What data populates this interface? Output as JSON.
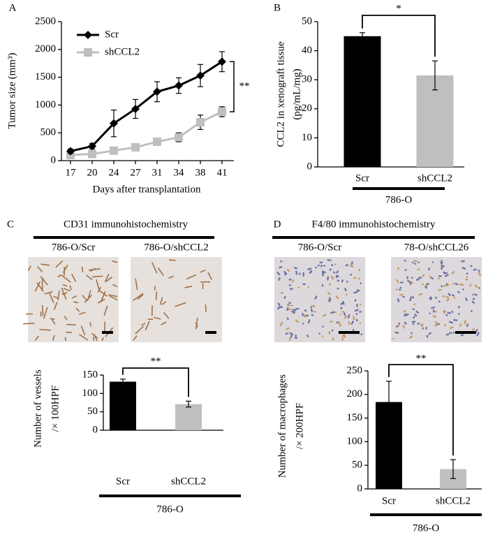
{
  "chart_data": [
    {
      "type": "line",
      "panel": "A",
      "xlabel": "Days after transplantation",
      "ylabel": "Tumor size (mm³)",
      "categories": [
        "17",
        "20",
        "24",
        "27",
        "31",
        "34",
        "38",
        "41"
      ],
      "series": [
        {
          "name": "Scr",
          "color": "#000000",
          "marker": "diamond",
          "values": [
            170,
            260,
            670,
            930,
            1240,
            1350,
            1530,
            1780
          ],
          "errors": [
            40,
            50,
            240,
            170,
            180,
            140,
            200,
            180
          ]
        },
        {
          "name": "shCCL2",
          "color": "#bfbfbf",
          "marker": "square",
          "values": [
            100,
            120,
            180,
            240,
            340,
            420,
            690,
            880
          ],
          "errors": [
            20,
            20,
            30,
            30,
            40,
            80,
            130,
            90
          ]
        }
      ],
      "ylim": [
        0,
        2500
      ],
      "yticks": [
        0,
        500,
        1000,
        1500,
        2000,
        2500
      ],
      "significance": "**"
    },
    {
      "type": "bar",
      "panel": "B",
      "ylabel": [
        "CCL2 in xenograft tissue",
        "(pg/mL/mg)"
      ],
      "categories": [
        "Scr",
        "shCCL2"
      ],
      "values": [
        45,
        31.5
      ],
      "errors": [
        1.2,
        5
      ],
      "colors": [
        "#000000",
        "#bfbfbf"
      ],
      "ylim": [
        0,
        50
      ],
      "yticks": [
        0,
        10,
        20,
        30,
        40,
        50
      ],
      "group": "786-O",
      "significance": "*"
    },
    {
      "type": "bar",
      "panel": "C",
      "header": "CD31 immunohistochemistry",
      "images": [
        "786-O/Scr",
        "786-O/shCCL2"
      ],
      "ylabel": [
        "Number of vessels",
        "/× 100HPF"
      ],
      "categories": [
        "Scr",
        "shCCL2"
      ],
      "values": [
        132,
        71
      ],
      "errors": [
        7,
        8
      ],
      "colors": [
        "#000000",
        "#bfbfbf"
      ],
      "ylim": [
        0,
        150
      ],
      "yticks": [
        0,
        50,
        100,
        150
      ],
      "group": "786-O",
      "significance": "**"
    },
    {
      "type": "bar",
      "panel": "D",
      "header": "F4/80 immunohistochemistry",
      "images": [
        "786-O/Scr",
        "78-O/shCCL26"
      ],
      "ylabel": [
        "Number of macrophages",
        "/× 200HPF"
      ],
      "categories": [
        "Scr",
        "shCCL2"
      ],
      "values": [
        184,
        42
      ],
      "errors": [
        44,
        20
      ],
      "colors": [
        "#000000",
        "#bfbfbf"
      ],
      "ylim": [
        0,
        250
      ],
      "yticks": [
        0,
        50,
        100,
        150,
        200,
        250
      ],
      "group": "786-O",
      "significance": "**"
    }
  ]
}
